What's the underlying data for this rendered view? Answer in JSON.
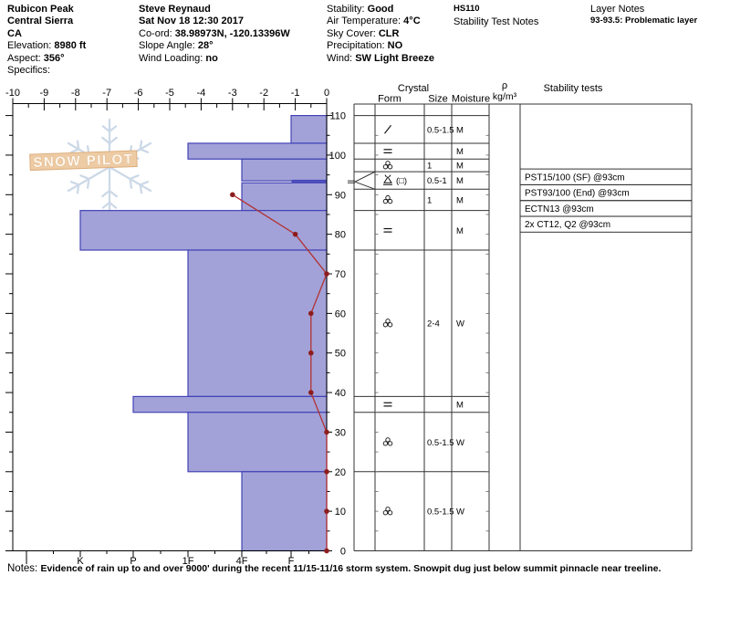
{
  "header": {
    "site": [
      {
        "label": "",
        "value": "Rubicon Peak"
      },
      {
        "label": "",
        "value": "Central Sierra"
      },
      {
        "label": "",
        "value": "CA"
      },
      {
        "label": "Elevation: ",
        "value": "8980 ft"
      },
      {
        "label": "Aspect: ",
        "value": "356°"
      },
      {
        "label": "Specifics:",
        "value": ""
      }
    ],
    "observer": [
      {
        "label": "",
        "value": "Steve Reynaud"
      },
      {
        "label": "",
        "value": "Sat Nov 18 12:30 2017"
      },
      {
        "label": "Co-ord: ",
        "value": "38.98973N, -120.13396W"
      },
      {
        "label": "Slope Angle: ",
        "value": "28°"
      },
      {
        "label": "Wind Loading: ",
        "value": "no"
      }
    ],
    "conditions": [
      {
        "label": "Stability: ",
        "value": "Good"
      },
      {
        "label": "Air Temperature: ",
        "value": "4°C"
      },
      {
        "label": "Sky Cover: ",
        "value": "CLR"
      },
      {
        "label": "Precipitation: ",
        "value": "NO"
      },
      {
        "label": "Wind: ",
        "value": "SW Light Breeze"
      }
    ],
    "hs_badge": "HS110",
    "stability_test_notes_label": "Stability Test Notes",
    "layer_notes_label": "Layer Notes",
    "layer_notes_value": "93-93.5: Problematic layer"
  },
  "notes": {
    "label": "Notes:",
    "text": "Evidence of rain up to and over 9000' during the recent 11/15-11/16 storm system.  Snowpit dug just below summit pinnacle near treeline."
  },
  "watermark": {
    "text": "SNOW PILOT"
  },
  "chart_data": {
    "type": "snow-profile",
    "temp_axis": {
      "unit": "°C",
      "min": -10,
      "max": 0,
      "ticks": [
        -10,
        -9,
        -8,
        -7,
        -6,
        -5,
        -4,
        -3,
        -2,
        -1,
        0
      ]
    },
    "hardness_axis": {
      "categories": [
        "I",
        "K",
        "P",
        "1F",
        "4F",
        "F"
      ]
    },
    "depth_axis": {
      "unit": "cm",
      "min": 0,
      "max": 113,
      "tick_labels": [
        110,
        100,
        90,
        80,
        70,
        60,
        50,
        40,
        30,
        20,
        10,
        0
      ]
    },
    "layers": [
      {
        "top_cm": 110,
        "bottom_cm": 103,
        "hardness": "F",
        "form": "slash",
        "form_note": "",
        "size_mm": "0.5-1.5",
        "moisture": "M",
        "thin": false,
        "flag": false
      },
      {
        "top_cm": 103,
        "bottom_cm": 99,
        "hardness": "1F",
        "form": "crust",
        "form_note": "",
        "size_mm": "",
        "moisture": "M",
        "thin": false,
        "flag": false
      },
      {
        "top_cm": 99,
        "bottom_cm": 93.5,
        "hardness": "4F",
        "form": "graupel",
        "form_note": "",
        "size_mm": "1",
        "moisture": "M",
        "thin": false,
        "flag": false
      },
      {
        "top_cm": 93.5,
        "bottom_cm": 93,
        "hardness": "F",
        "form": "hoar",
        "form_note": "(□)",
        "size_mm": "0.5-1",
        "moisture": "M",
        "thin": true,
        "flag": true
      },
      {
        "top_cm": 93,
        "bottom_cm": 86,
        "hardness": "4F",
        "form": "graupel",
        "form_note": "",
        "size_mm": "1",
        "moisture": "M",
        "thin": false,
        "flag": false
      },
      {
        "top_cm": 86,
        "bottom_cm": 76,
        "hardness": "K",
        "form": "crust",
        "form_note": "",
        "size_mm": "",
        "moisture": "M",
        "thin": false,
        "flag": false
      },
      {
        "top_cm": 76,
        "bottom_cm": 39,
        "hardness": "1F",
        "form": "graupel",
        "form_note": "",
        "size_mm": "2-4",
        "moisture": "W",
        "thin": false,
        "flag": false
      },
      {
        "top_cm": 39,
        "bottom_cm": 35,
        "hardness": "P",
        "form": "crust",
        "form_note": "",
        "size_mm": "",
        "moisture": "M",
        "thin": false,
        "flag": false
      },
      {
        "top_cm": 35,
        "bottom_cm": 20,
        "hardness": "1F",
        "form": "graupel",
        "form_note": "",
        "size_mm": "0.5-1.5",
        "moisture": "W",
        "thin": false,
        "flag": false
      },
      {
        "top_cm": 20,
        "bottom_cm": 0,
        "hardness": "4F",
        "form": "graupel",
        "form_note": "",
        "size_mm": "0.5-1.5",
        "moisture": "W",
        "thin": false,
        "flag": false
      }
    ],
    "temperature_profile": [
      {
        "depth_cm": 90,
        "temp_c": -3
      },
      {
        "depth_cm": 80,
        "temp_c": -1
      },
      {
        "depth_cm": 70,
        "temp_c": 0
      },
      {
        "depth_cm": 60,
        "temp_c": -0.5
      },
      {
        "depth_cm": 50,
        "temp_c": -0.5
      },
      {
        "depth_cm": 40,
        "temp_c": -0.5
      },
      {
        "depth_cm": 30,
        "temp_c": 0
      },
      {
        "depth_cm": 20,
        "temp_c": 0
      },
      {
        "depth_cm": 10,
        "temp_c": 0
      },
      {
        "depth_cm": 0,
        "temp_c": 0
      }
    ],
    "stability_tests": [
      "PST15/100 (SF) @93cm",
      "PST93/100 (End) @93cm",
      "ECTN13 @93cm",
      "2x CT12, Q2 @93cm"
    ],
    "table_headers": {
      "crystal": "Crystal",
      "form": "Form",
      "size": "Size",
      "moisture": "Moisture",
      "rho": "ρ",
      "rho_units": "kg/m³",
      "stability": "Stability tests"
    },
    "colors": {
      "bar_fill": "#a2a2d8",
      "bar_border": "#4343b6",
      "thin_layer": "#5050bf",
      "temp_line": "#b23232",
      "temp_dot": "#8d1d1d",
      "watermark_flake": "#ccd9e7",
      "watermark_banner": "#edcba4",
      "watermark_banner_edge": "#dcae7e",
      "grid": "#333333"
    }
  }
}
